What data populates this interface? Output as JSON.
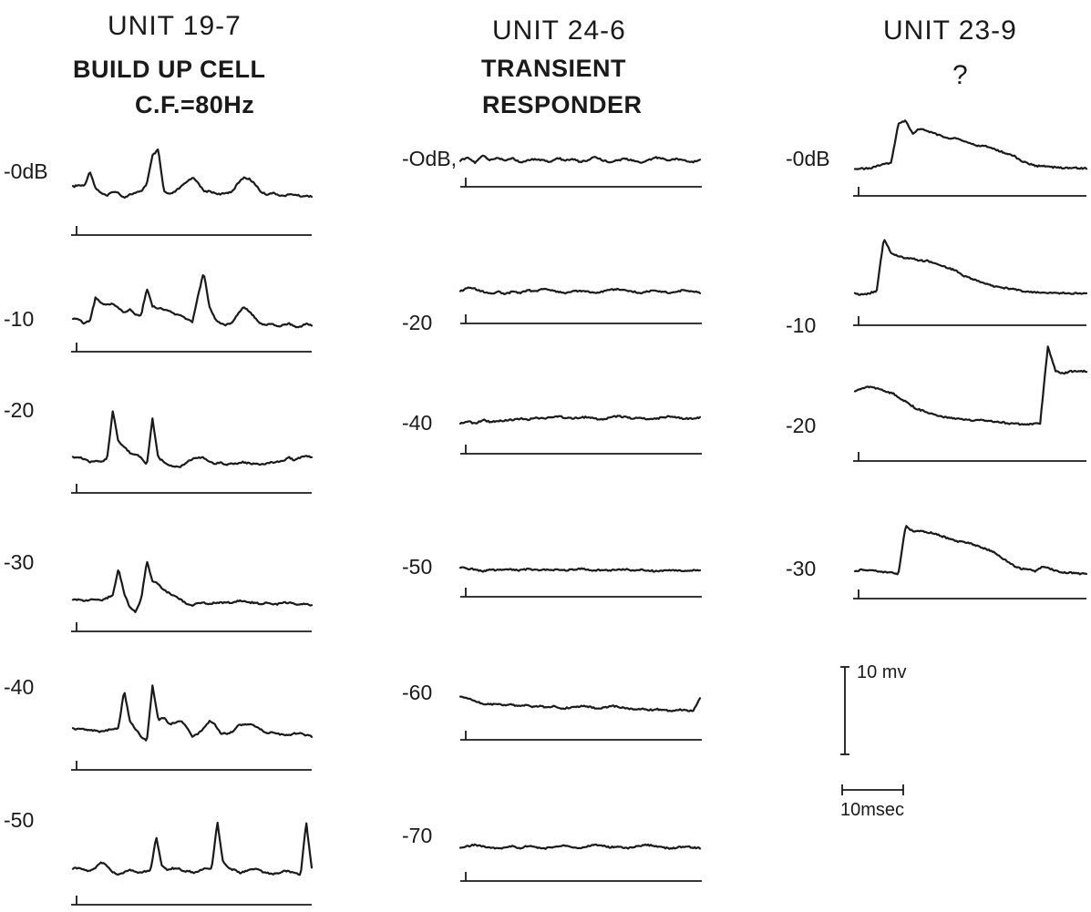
{
  "chart_data": [
    {
      "type": "line",
      "title": "UNIT 19-7",
      "subtitle": [
        "BUILD UP CELL",
        "C.F.=80Hz"
      ],
      "series": [
        {
          "name": "-0dB",
          "y": [
            0,
            1,
            0.5,
            10,
            -1,
            -4,
            -6,
            -3,
            -4,
            -7,
            -5,
            -4,
            -3,
            2,
            20,
            24,
            -3,
            -5,
            -3,
            0,
            3,
            6,
            3,
            -3,
            -3,
            -4,
            -5,
            -4,
            -3,
            2,
            6,
            5,
            2,
            -3,
            -5,
            -4,
            -5,
            -6,
            -5,
            -5,
            -6,
            -6,
            -6
          ],
          "spikes": [
            0.23,
            0.34,
            0.38
          ]
        },
        {
          "name": "-10",
          "y": [
            0,
            0,
            -3,
            -1,
            14,
            10,
            9,
            10,
            7,
            4,
            6,
            3,
            2,
            20,
            8,
            7,
            6,
            5,
            3,
            2,
            0,
            -2,
            15,
            30,
            8,
            0,
            -3,
            -4,
            -2,
            3,
            8,
            5,
            1,
            -3,
            -4,
            -3,
            -5,
            -4,
            -3,
            -5,
            -5,
            -3,
            -4
          ],
          "spikes": [
            0.11,
            0.29,
            0.55
          ]
        },
        {
          "name": "-20",
          "y": [
            0,
            0,
            -1,
            -3,
            -2,
            -3,
            -1,
            30,
            10,
            7,
            3,
            2,
            0,
            -5,
            25,
            0,
            -3,
            -5,
            -6,
            -6,
            -3,
            -1,
            0,
            0,
            -3,
            -4,
            -3,
            -5,
            -4,
            -4,
            -3,
            -4,
            -4,
            -5,
            -4,
            -3,
            -3,
            -2,
            0,
            -2,
            0,
            1,
            0
          ],
          "spikes": [
            0.11,
            0.28,
            0.31,
            0.5
          ]
        },
        {
          "name": "-30",
          "y": [
            0,
            0,
            -1,
            0,
            0,
            -1,
            1,
            3,
            20,
            4,
            -5,
            -8,
            0,
            25,
            12,
            10,
            6,
            4,
            2,
            0,
            -3,
            -4,
            -2,
            -2,
            -3,
            -2,
            -2,
            -2,
            -2,
            -1,
            -1,
            -2,
            -2,
            -3,
            -2,
            -3,
            -3,
            -2,
            -2,
            -3,
            -3,
            -3,
            -4
          ],
          "spikes": [
            0.13,
            0.28
          ]
        },
        {
          "name": "-40",
          "y": [
            0,
            0,
            0,
            -1,
            -1,
            -2,
            -1,
            0,
            0,
            25,
            5,
            0,
            -5,
            -8,
            28,
            6,
            7,
            3,
            4,
            5,
            1,
            -5,
            -3,
            0,
            5,
            3,
            -3,
            -3,
            -2,
            2,
            3,
            3,
            2,
            0,
            -3,
            -2,
            -3,
            -4,
            -4,
            -3,
            -3,
            -4,
            -5
          ],
          "spikes": [
            0.14,
            0.29
          ]
        },
        {
          "name": "-50",
          "y": [
            0,
            0,
            -1,
            -2,
            0,
            4,
            2,
            -2,
            -4,
            -3,
            -1,
            -2,
            -3,
            -2,
            -1,
            20,
            2,
            -1,
            0,
            0,
            -2,
            -2,
            -3,
            -1,
            0,
            0,
            30,
            5,
            0,
            -1,
            -3,
            -2,
            -1,
            0,
            -2,
            -3,
            -4,
            -3,
            -2,
            -2,
            -3,
            -4,
            30,
            0
          ],
          "spikes": [
            0.3,
            0.52,
            0.95
          ]
        }
      ]
    },
    {
      "type": "line",
      "title": "UNIT 24-6",
      "subtitle": [
        "TRANSIENT",
        "RESPONDER"
      ],
      "series": [
        {
          "name": "-OdB,",
          "y": [
            0,
            0.5,
            -0.5,
            1,
            0,
            0.5,
            0,
            0.5,
            -0.5,
            0,
            0.3,
            0,
            -0.3,
            0.5,
            0,
            0.3,
            -0.3,
            0,
            0.8,
            0,
            -0.3,
            0,
            0.3,
            0,
            -0.5,
            0,
            0.6,
            0.3,
            0,
            0.3,
            0,
            -0.3,
            0
          ],
          "spikes": [
            0.04
          ]
        },
        {
          "name": "-20",
          "y": [
            0,
            0.8,
            0.5,
            0,
            -0.5,
            0,
            -0.5,
            0,
            -0.3,
            0.3,
            0,
            0.5,
            0.3,
            0,
            -0.3,
            0,
            0.2,
            0,
            -0.3,
            0,
            0.3,
            0.5,
            0.2,
            0,
            -0.3,
            0,
            0.2,
            0,
            -0.3,
            0,
            0.3,
            0,
            -0.2
          ],
          "spikes": [
            0.04
          ]
        },
        {
          "name": "-40",
          "y": [
            0,
            0.5,
            0,
            0.8,
            0.3,
            0.5,
            0.6,
            0.8,
            1,
            0.8,
            1.2,
            1,
            1.3,
            1.5,
            1.2,
            1,
            1.2,
            1.3,
            1,
            0.8,
            1.2,
            1.5,
            1.3,
            1,
            1.2,
            0.8,
            1,
            1.2,
            1.5,
            1.2,
            1,
            1,
            1.2
          ],
          "spikes": [
            0.04
          ]
        },
        {
          "name": "-50",
          "y": [
            0.8,
            0.5,
            0.4,
            0,
            0.3,
            0.2,
            0.4,
            0.3,
            0.2,
            0.4,
            0.2,
            0.3,
            0.2,
            0.4,
            0.2,
            0.3,
            0.5,
            0.3,
            0.2,
            0.3,
            0.2,
            0.3,
            0.4,
            0.2,
            0.3,
            0.2,
            0,
            0.1,
            0.2,
            0.1,
            0.1,
            0.2,
            0.1
          ],
          "spikes": [
            0.03
          ]
        },
        {
          "name": "-60",
          "y": [
            2,
            1.5,
            1,
            0.5,
            0.3,
            0.5,
            0.2,
            0.3,
            0,
            0.2,
            -0.2,
            0,
            -0.3,
            0,
            -0.5,
            -0.3,
            -0.2,
            0,
            -0.2,
            -0.5,
            -0.3,
            0,
            -0.2,
            -0.5,
            -0.7,
            -0.5,
            -0.8,
            -0.6,
            -0.8,
            -1,
            -0.7,
            -0.8,
            -1,
            1.5
          ],
          "spikes": [
            0.02,
            0.98
          ]
        },
        {
          "name": "-70",
          "y": [
            0,
            0.2,
            0.5,
            0.2,
            0,
            -0.3,
            0,
            0.2,
            -0.2,
            0.3,
            0.1,
            -0.3,
            0,
            0.2,
            0.3,
            0,
            -0.2,
            0.2,
            0.5,
            0.3,
            0,
            0.2,
            -0.2,
            0,
            0.3,
            0.5,
            0.2,
            0,
            -0.3,
            0,
            0.2,
            0,
            -0.2
          ],
          "spikes": []
        }
      ]
    },
    {
      "type": "line",
      "title": "UNIT 23-9",
      "subtitle": [
        "?"
      ],
      "series": [
        {
          "name": "-0dB",
          "y": [
            0,
            0,
            0,
            0.5,
            1,
            1,
            9,
            9.5,
            7,
            8,
            7.5,
            7,
            6.5,
            6,
            6,
            5.5,
            5,
            4.5,
            4.5,
            4,
            3.5,
            3,
            2.5,
            1.5,
            1,
            0.5,
            0.5,
            0.3,
            0.2,
            0.1,
            0.2,
            0.1,
            0
          ],
          "spikes": [
            0.19
          ]
        },
        {
          "name": "-10",
          "y": [
            0,
            -0.3,
            0,
            0.5,
            11,
            8,
            7.5,
            7,
            7,
            6.5,
            6.5,
            6,
            5.5,
            5,
            4.5,
            3.5,
            3,
            2.5,
            2,
            1.5,
            1.2,
            1,
            0.8,
            0.5,
            0.3,
            0.2,
            0.2,
            0.1,
            0,
            0.1,
            0,
            0,
            0
          ],
          "spikes": [
            0.15
          ]
        },
        {
          "name": "-20",
          "y": [
            7,
            7.5,
            8,
            7.5,
            7,
            6.5,
            5.5,
            4.5,
            3.5,
            3,
            2.5,
            2,
            1.8,
            1.5,
            1.4,
            1.2,
            1.3,
            1.2,
            1,
            0.8,
            0.6,
            0.5,
            0.4,
            0.5,
            0.6,
            16,
            11,
            10.5,
            11,
            11,
            11
          ],
          "spikes": [
            0.83
          ]
        },
        {
          "name": "-30",
          "y": [
            0,
            0.3,
            0.2,
            0,
            -0.2,
            -0.3,
            -0.5,
            9,
            8,
            8,
            7.8,
            7.5,
            7,
            6.5,
            6,
            5.8,
            5.5,
            5,
            4.5,
            4,
            3,
            2,
            1,
            0.5,
            0.5,
            0,
            1,
            0.5,
            0,
            -0.3,
            -0.3,
            -0.5,
            -0.5
          ],
          "spikes": [
            0.23
          ]
        }
      ]
    }
  ],
  "scale_bar": {
    "voltage_label": "10 mv",
    "time_label": "10msec"
  }
}
